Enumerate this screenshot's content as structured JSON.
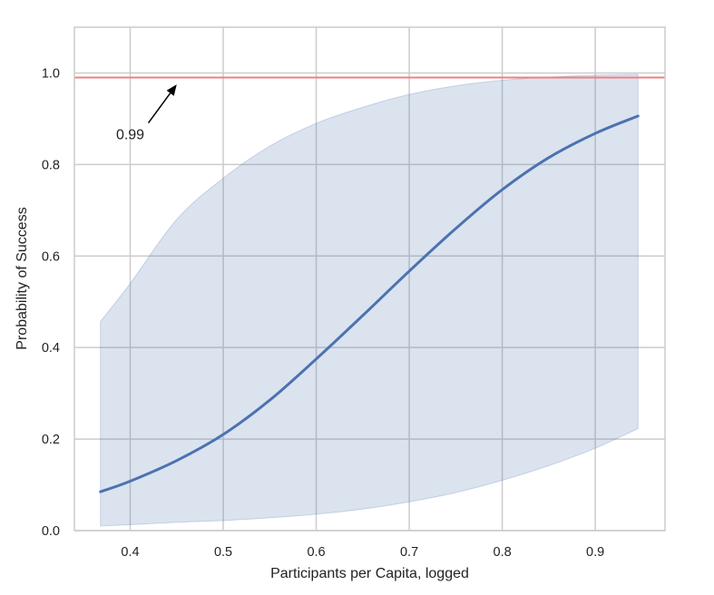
{
  "chart_data": {
    "type": "line",
    "xlabel": "Participants per Capita, logged",
    "ylabel": "Probability of Success",
    "xlim": [
      0.34,
      0.975
    ],
    "ylim": [
      0.0,
      1.1
    ],
    "x_ticks": [
      0.4,
      0.5,
      0.6,
      0.7,
      0.8,
      0.9
    ],
    "x_tick_labels": [
      "0.4",
      "0.5",
      "0.6",
      "0.7",
      "0.8",
      "0.9"
    ],
    "y_ticks": [
      0.0,
      0.2,
      0.4,
      0.6,
      0.8,
      1.0
    ],
    "y_tick_labels": [
      "0.0",
      "0.2",
      "0.4",
      "0.6",
      "0.8",
      "1.0"
    ],
    "grid": true,
    "series": [
      {
        "x": [
          0.368,
          0.4,
          0.45,
          0.5,
          0.55,
          0.6,
          0.65,
          0.7,
          0.75,
          0.8,
          0.85,
          0.9,
          0.946
        ],
        "y": [
          0.085,
          0.108,
          0.153,
          0.21,
          0.285,
          0.375,
          0.47,
          0.567,
          0.66,
          0.745,
          0.815,
          0.868,
          0.906
        ],
        "color": "#4c72b0"
      }
    ],
    "confidence_band": {
      "x": [
        0.368,
        0.4,
        0.45,
        0.5,
        0.55,
        0.6,
        0.65,
        0.7,
        0.75,
        0.8,
        0.85,
        0.9,
        0.946
      ],
      "lower": [
        0.01,
        0.013,
        0.018,
        0.022,
        0.028,
        0.036,
        0.047,
        0.063,
        0.083,
        0.11,
        0.142,
        0.18,
        0.223
      ],
      "upper": [
        0.457,
        0.54,
        0.68,
        0.77,
        0.84,
        0.89,
        0.925,
        0.953,
        0.972,
        0.984,
        0.991,
        0.995,
        0.997
      ],
      "color": "#4c72b0"
    },
    "reference_line": {
      "y": 0.99,
      "color": "#f08080"
    },
    "annotation": {
      "text": "0.99",
      "text_x": 0.4,
      "text_y": 0.855,
      "arrow_x": 0.45,
      "arrow_y": 0.975
    }
  }
}
